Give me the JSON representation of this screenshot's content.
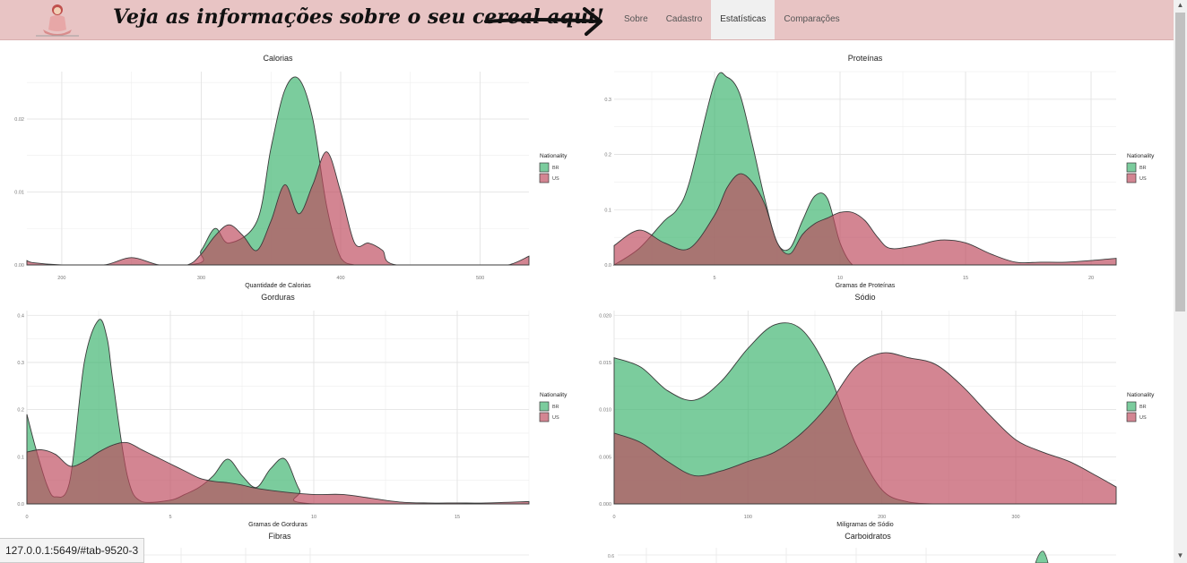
{
  "header": {
    "slogan": "Veja as informações sobre o seu cereal aqui!",
    "tabs": [
      {
        "label": "Sobre",
        "active": false
      },
      {
        "label": "Cadastro",
        "active": false
      },
      {
        "label": "Estatísticas",
        "active": true
      },
      {
        "label": "Comparações",
        "active": false
      }
    ]
  },
  "status_bar": {
    "url": "127.0.0.1:5649/#tab-9520-3"
  },
  "colors": {
    "BR": "#3cb46e",
    "US": "#be4b5f",
    "navbar": "#e8c4c4"
  },
  "chart_data": [
    {
      "id": "calorias",
      "type": "area",
      "title": "Calorias",
      "xlabel": "Quantidade de Calorias",
      "ylabel": "",
      "xlim": [
        175,
        535
      ],
      "ylim": [
        0,
        0.0265
      ],
      "xticks": [
        200,
        300,
        400,
        500
      ],
      "xtick_labels": [
        "200",
        "300",
        "400",
        "500"
      ],
      "yticks": [
        0,
        0.01,
        0.02
      ],
      "ytick_labels": [
        "0.00",
        "0.01",
        "0.02"
      ],
      "legend": {
        "title": "Nationality",
        "entries": [
          "BR",
          "US"
        ],
        "position": "right"
      },
      "series": [
        {
          "name": "BR",
          "x": [
            175,
            290,
            300,
            310,
            320,
            340,
            350,
            360,
            370,
            380,
            390,
            400,
            410,
            420,
            535
          ],
          "y": [
            0,
            0,
            0.002,
            0.005,
            0.003,
            0.006,
            0.016,
            0.024,
            0.0255,
            0.02,
            0.008,
            0.001,
            0,
            0,
            0
          ]
        },
        {
          "name": "US",
          "x": [
            175,
            180,
            200,
            230,
            250,
            270,
            290,
            300,
            310,
            320,
            330,
            340,
            350,
            360,
            370,
            380,
            390,
            400,
            410,
            420,
            430,
            440,
            500,
            520,
            535
          ],
          "y": [
            0.0006,
            0.0003,
            0,
            0,
            0.001,
            0,
            0,
            0.0015,
            0.004,
            0.0055,
            0.004,
            0.002,
            0.006,
            0.011,
            0.007,
            0.011,
            0.0155,
            0.01,
            0.003,
            0.003,
            0.002,
            0,
            0,
            0,
            0.0012
          ]
        }
      ]
    },
    {
      "id": "proteinas",
      "type": "area",
      "title": "Proteínas",
      "xlabel": "Gramas de Proteínas",
      "ylabel": "",
      "xlim": [
        1,
        21
      ],
      "ylim": [
        0,
        0.35
      ],
      "xticks": [
        5,
        10,
        15,
        20
      ],
      "xtick_labels": [
        "5",
        "10",
        "15",
        "20"
      ],
      "yticks": [
        0,
        0.1,
        0.2,
        0.3
      ],
      "ytick_labels": [
        "0.0",
        "0.1",
        "0.2",
        "0.3"
      ],
      "legend": {
        "title": "Nationality",
        "entries": [
          "BR",
          "US"
        ],
        "position": "right"
      },
      "series": [
        {
          "name": "BR",
          "x": [
            1,
            2,
            3,
            3.5,
            4,
            5,
            5.5,
            6,
            6.5,
            7,
            7.5,
            8,
            8.5,
            9,
            9.5,
            10,
            10.5,
            11,
            11.5,
            12,
            21
          ],
          "y": [
            0,
            0.03,
            0.08,
            0.1,
            0.15,
            0.33,
            0.34,
            0.31,
            0.22,
            0.12,
            0.04,
            0.03,
            0.08,
            0.125,
            0.12,
            0.04,
            0,
            0,
            0,
            0,
            0
          ]
        },
        {
          "name": "US",
          "x": [
            1,
            2,
            3,
            4,
            5,
            5.5,
            6,
            6.5,
            7,
            7.5,
            8,
            8.5,
            9,
            9.5,
            10,
            10.5,
            11,
            11.5,
            12,
            13,
            14,
            15,
            16,
            17,
            18,
            19,
            20,
            21
          ],
          "y": [
            0.035,
            0.063,
            0.04,
            0.03,
            0.09,
            0.14,
            0.165,
            0.15,
            0.11,
            0.04,
            0.02,
            0.055,
            0.075,
            0.085,
            0.095,
            0.095,
            0.08,
            0.05,
            0.03,
            0.035,
            0.045,
            0.04,
            0.02,
            0.005,
            0.005,
            0.005,
            0.008,
            0.012
          ]
        }
      ]
    },
    {
      "id": "gorduras",
      "type": "area",
      "title": "Gorduras",
      "xlabel": "Gramas de Gorduras",
      "ylabel": "",
      "xlim": [
        0,
        17.5
      ],
      "ylim": [
        0,
        0.41
      ],
      "xticks": [
        0,
        5,
        10,
        15
      ],
      "xtick_labels": [
        "0",
        "5",
        "10",
        "15"
      ],
      "yticks": [
        0,
        0.1,
        0.2,
        0.3,
        0.4
      ],
      "ytick_labels": [
        "0.0",
        "0.1",
        "0.2",
        "0.3",
        "0.4"
      ],
      "legend": {
        "title": "Nationality",
        "entries": [
          "BR",
          "US"
        ],
        "position": "right"
      },
      "series": [
        {
          "name": "BR",
          "x": [
            0,
            0.3,
            0.7,
            1,
            1.5,
            2,
            2.5,
            2.8,
            3,
            3.5,
            4,
            5,
            5.5,
            6,
            6.5,
            7,
            7.5,
            8,
            8.5,
            9,
            9.5,
            10,
            17.5
          ],
          "y": [
            0.19,
            0.12,
            0.04,
            0.015,
            0.05,
            0.3,
            0.39,
            0.35,
            0.26,
            0.06,
            0.005,
            0.008,
            0.02,
            0.035,
            0.06,
            0.095,
            0.06,
            0.035,
            0.075,
            0.095,
            0.03,
            0,
            0
          ]
        },
        {
          "name": "US",
          "x": [
            0,
            0.5,
            1,
            1.5,
            2,
            2.5,
            3,
            3.5,
            4,
            4.5,
            5,
            5.5,
            6,
            6.5,
            7,
            7.5,
            8,
            9,
            10,
            11,
            12,
            13,
            14,
            15,
            16,
            17.5
          ],
          "y": [
            0.11,
            0.115,
            0.105,
            0.08,
            0.09,
            0.11,
            0.125,
            0.13,
            0.115,
            0.1,
            0.085,
            0.07,
            0.055,
            0.048,
            0.045,
            0.04,
            0.033,
            0.025,
            0.02,
            0.02,
            0.012,
            0.004,
            0.002,
            0.002,
            0.002,
            0.005
          ]
        }
      ]
    },
    {
      "id": "sodio",
      "type": "area",
      "title": "Sódio",
      "xlabel": "Miligramas de Sódio",
      "ylabel": "",
      "xlim": [
        0,
        375
      ],
      "ylim": [
        0,
        0.0205
      ],
      "xticks": [
        0,
        100,
        200,
        300
      ],
      "xtick_labels": [
        "0",
        "100",
        "200",
        "300"
      ],
      "yticks": [
        0,
        0.005,
        0.01,
        0.015,
        0.02
      ],
      "ytick_labels": [
        "0.000",
        "0.005",
        "0.010",
        "0.015",
        "0.020"
      ],
      "legend": {
        "title": "Nationality",
        "entries": [
          "BR",
          "US"
        ],
        "position": "right"
      },
      "series": [
        {
          "name": "BR",
          "x": [
            0,
            20,
            40,
            60,
            80,
            100,
            120,
            140,
            160,
            180,
            200,
            220,
            240,
            260,
            280,
            300,
            375
          ],
          "y": [
            0.0155,
            0.0145,
            0.012,
            0.011,
            0.013,
            0.0165,
            0.019,
            0.0185,
            0.014,
            0.0065,
            0.0015,
            0.0002,
            0,
            0,
            0,
            0,
            0
          ]
        },
        {
          "name": "US",
          "x": [
            0,
            20,
            40,
            60,
            80,
            100,
            120,
            140,
            160,
            180,
            200,
            220,
            240,
            260,
            280,
            300,
            320,
            340,
            360,
            375
          ],
          "y": [
            0.0075,
            0.0065,
            0.0045,
            0.003,
            0.0035,
            0.0045,
            0.0055,
            0.0075,
            0.0105,
            0.0145,
            0.016,
            0.0155,
            0.0148,
            0.0125,
            0.0095,
            0.0068,
            0.0055,
            0.0045,
            0.003,
            0.0018
          ]
        }
      ]
    }
  ],
  "partial_plots": [
    {
      "id": "fibras",
      "title": "Fibras"
    },
    {
      "id": "carboidratos",
      "title": "Carboidratos",
      "ytick_label": "0.6"
    }
  ]
}
